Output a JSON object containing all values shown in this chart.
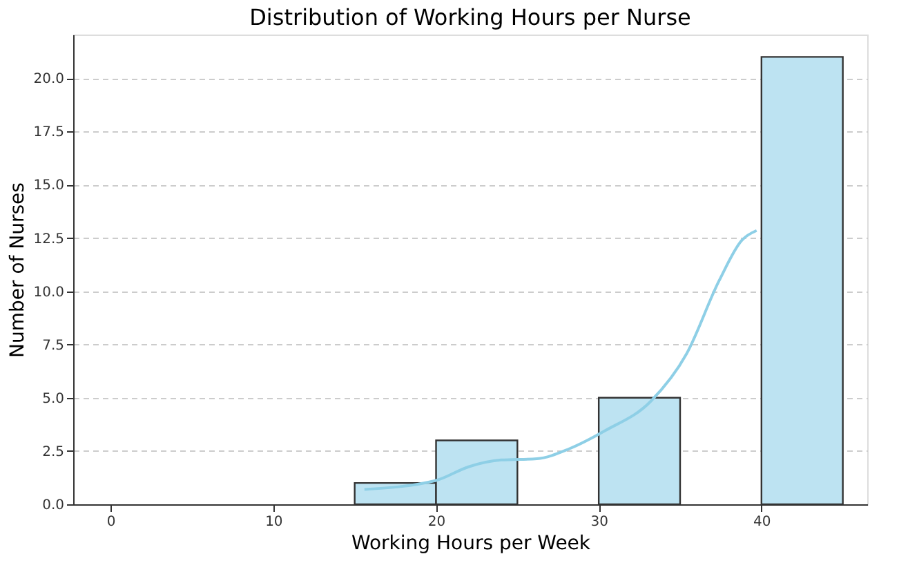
{
  "chart_data": {
    "type": "histogram",
    "title": "Distribution of Working Hours per Nurse",
    "xlabel": "Working Hours per Week",
    "ylabel": "Number of Nurses",
    "bins": [
      15,
      20,
      25,
      30,
      35,
      40,
      45
    ],
    "values": [
      1,
      3,
      0,
      5,
      0,
      21
    ],
    "color": "#bde3f2",
    "series": [
      {
        "type": "line",
        "color": "#8ecfe6",
        "x": [
          15.6,
          20,
          22,
          24,
          26.2,
          28.2,
          30.4,
          33.2,
          35.4,
          37.4,
          38.8,
          39.7
        ],
        "values": [
          0.7,
          1.12,
          1.76,
          2.08,
          2.14,
          2.61,
          3.46,
          4.84,
          7.07,
          10.5,
          12.4,
          12.85
        ]
      }
    ],
    "xlim": [
      -2.3,
      46.5
    ],
    "xticks": [
      0,
      10,
      20,
      30,
      40
    ],
    "ylim": [
      0,
      22.05
    ],
    "yticks": [
      {
        "value": 0,
        "label": "0.0"
      },
      {
        "value": 2.5,
        "label": "2.5"
      },
      {
        "value": 5,
        "label": "5.0"
      },
      {
        "value": 7.5,
        "label": "7.5"
      },
      {
        "value": 10,
        "label": "10.0"
      },
      {
        "value": 12.5,
        "label": "12.5"
      },
      {
        "value": 15,
        "label": "15.0"
      },
      {
        "value": 17.5,
        "label": "17.5"
      },
      {
        "value": 20,
        "label": "20.0"
      }
    ],
    "grid": "y"
  }
}
